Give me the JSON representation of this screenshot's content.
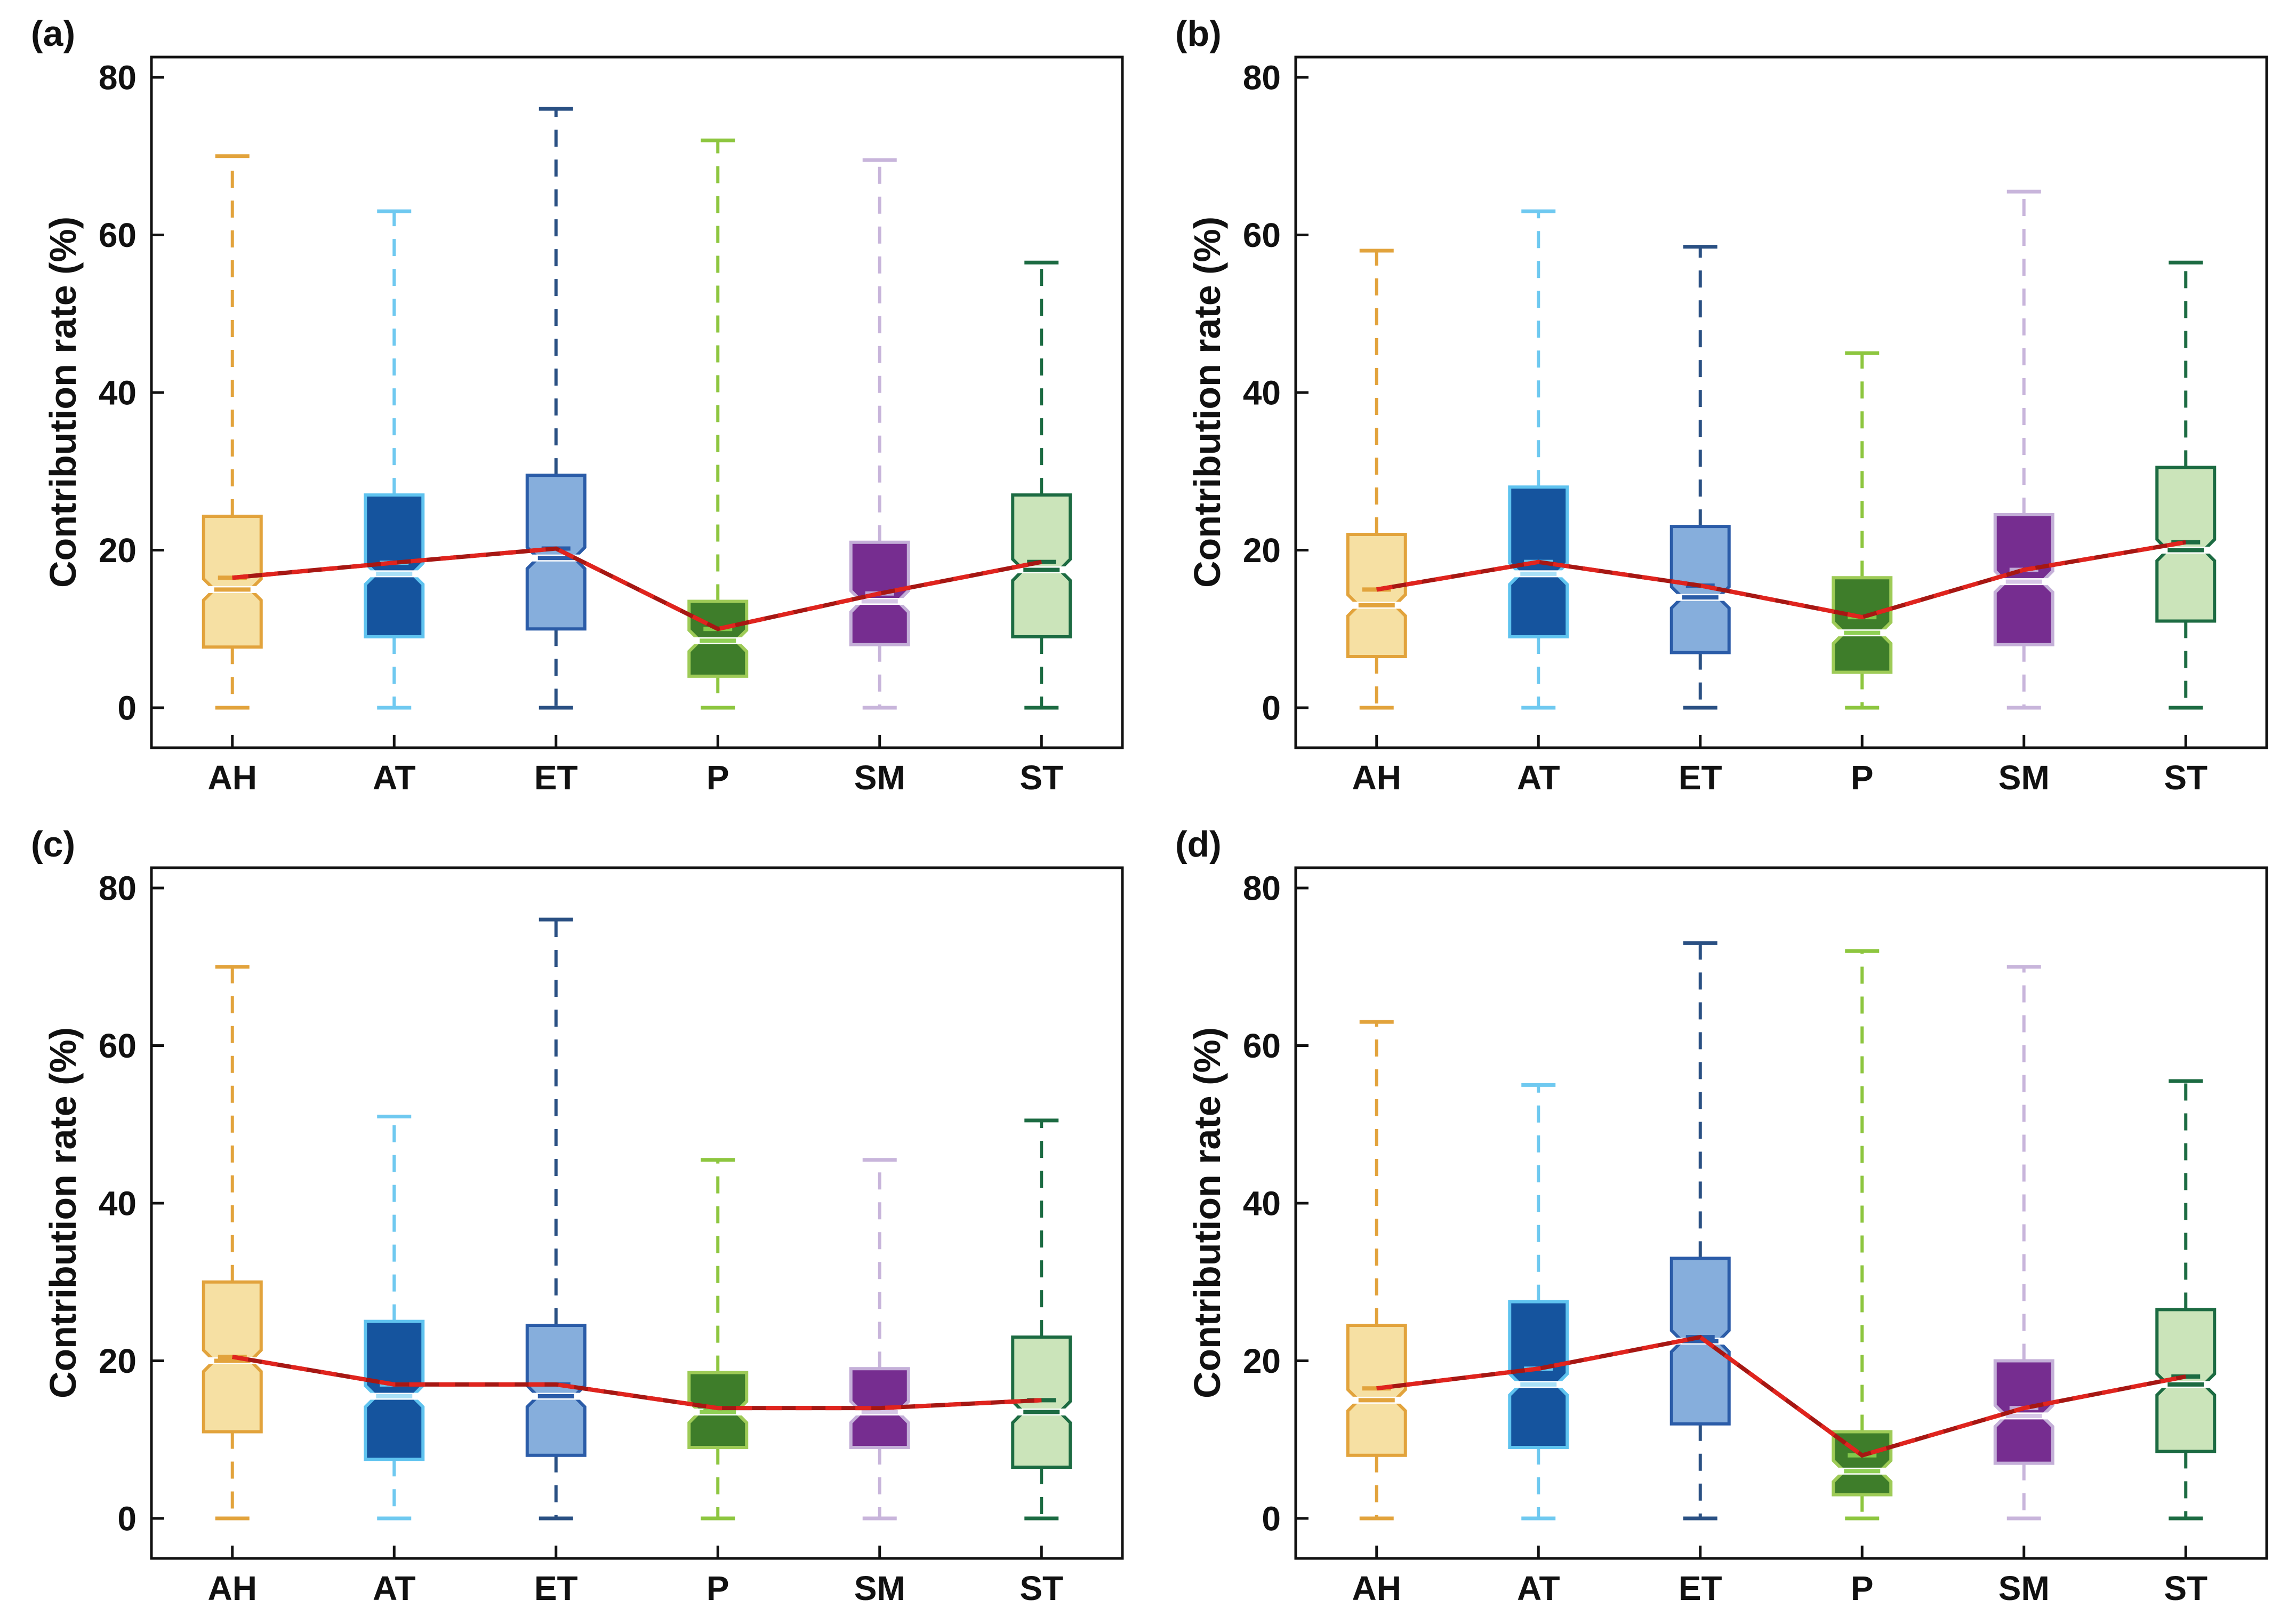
{
  "figure": {
    "background": "#FFFFFF"
  },
  "chart_data": {
    "type": "box",
    "title": "",
    "ylabel": "Contribution rate (%)",
    "xlabel": "",
    "yticks": [
      0,
      20,
      40,
      60,
      80
    ],
    "ylim": [
      -5,
      83
    ],
    "grid": false,
    "legend_position": "none",
    "categories": [
      "AH",
      "AT",
      "ET",
      "P",
      "SM",
      "ST"
    ],
    "notched_boxes": true,
    "mean_trend_line": {
      "description": "red line connecting category means",
      "base_color": "#A61713",
      "dash_color": "#E0241E"
    },
    "styles": {
      "AH": {
        "edge": "#E2A33C",
        "fill": "#F6E0A3",
        "whisker": "#E2A33C",
        "median": "#E2A33C",
        "mean": "#E2A33C"
      },
      "AT": {
        "edge": "#5FC3EF",
        "fill": "#15549E",
        "whisker": "#6FC9F0",
        "median": "#A8E0F7",
        "mean": "#66C7F0"
      },
      "ET": {
        "edge": "#2B5CA8",
        "fill": "#86AEDC",
        "whisker": "#2A5083",
        "median": "#2B5CA8",
        "mean": "#2B5CA8"
      },
      "P": {
        "edge": "#9ECB57",
        "fill": "#3E7D2A",
        "whisker": "#8DC63F",
        "median": "#8FD055",
        "mean": "#82C84B"
      },
      "SM": {
        "edge": "#C4AFD8",
        "fill": "#762D90",
        "whisker": "#C8B5DB",
        "median": "#D6C6E6",
        "mean": "#C0A9D6"
      },
      "ST": {
        "edge": "#1C6B42",
        "fill": "#CBE4BA",
        "whisker": "#1C6B42",
        "median": "#1C6B42",
        "mean": "#1C6B42"
      }
    },
    "panels": [
      {
        "label": "(a)",
        "boxes": [
          {
            "category": "AH",
            "whisker_low": 0,
            "q1": 7.7,
            "median": 15,
            "mean": 16.5,
            "q3": 24.3,
            "whisker_high": 70
          },
          {
            "category": "AT",
            "whisker_low": 0,
            "q1": 9,
            "median": 17,
            "mean": 18.4,
            "q3": 27,
            "whisker_high": 63
          },
          {
            "category": "ET",
            "whisker_low": 0,
            "q1": 10,
            "median": 19,
            "mean": 20.2,
            "q3": 29.5,
            "whisker_high": 76
          },
          {
            "category": "P",
            "whisker_low": 0,
            "q1": 4,
            "median": 8.5,
            "mean": 10,
            "q3": 13.5,
            "whisker_high": 72
          },
          {
            "category": "SM",
            "whisker_low": 0,
            "q1": 8,
            "median": 13.5,
            "mean": 14.5,
            "q3": 21,
            "whisker_high": 69.5
          },
          {
            "category": "ST",
            "whisker_low": 0,
            "q1": 9,
            "median": 17.5,
            "mean": 18.5,
            "q3": 27,
            "whisker_high": 56.5
          }
        ]
      },
      {
        "label": "(b)",
        "boxes": [
          {
            "category": "AH",
            "whisker_low": 0,
            "q1": 6.5,
            "median": 13,
            "mean": 15,
            "q3": 22,
            "whisker_high": 58
          },
          {
            "category": "AT",
            "whisker_low": 0,
            "q1": 9,
            "median": 17,
            "mean": 18.5,
            "q3": 28,
            "whisker_high": 63
          },
          {
            "category": "ET",
            "whisker_low": 0,
            "q1": 7,
            "median": 14,
            "mean": 15.5,
            "q3": 23,
            "whisker_high": 58.5
          },
          {
            "category": "P",
            "whisker_low": 0,
            "q1": 4.5,
            "median": 9.5,
            "mean": 11.5,
            "q3": 16.5,
            "whisker_high": 45
          },
          {
            "category": "SM",
            "whisker_low": 0,
            "q1": 8,
            "median": 16,
            "mean": 17.5,
            "q3": 24.5,
            "whisker_high": 65.5
          },
          {
            "category": "ST",
            "whisker_low": 0,
            "q1": 11,
            "median": 20,
            "mean": 21,
            "q3": 30.5,
            "whisker_high": 56.5
          }
        ]
      },
      {
        "label": "(c)",
        "boxes": [
          {
            "category": "AH",
            "whisker_low": 0,
            "q1": 11,
            "median": 20,
            "mean": 20.5,
            "q3": 30,
            "whisker_high": 70
          },
          {
            "category": "AT",
            "whisker_low": 0,
            "q1": 7.5,
            "median": 15.5,
            "mean": 17,
            "q3": 25,
            "whisker_high": 51
          },
          {
            "category": "ET",
            "whisker_low": 0,
            "q1": 8,
            "median": 15.5,
            "mean": 17,
            "q3": 24.5,
            "whisker_high": 76
          },
          {
            "category": "P",
            "whisker_low": 0,
            "q1": 9,
            "median": 13.5,
            "mean": 14,
            "q3": 18.5,
            "whisker_high": 45.5
          },
          {
            "category": "SM",
            "whisker_low": 0,
            "q1": 9,
            "median": 13.5,
            "mean": 14,
            "q3": 19,
            "whisker_high": 45.5
          },
          {
            "category": "ST",
            "whisker_low": 0,
            "q1": 6.5,
            "median": 13.5,
            "mean": 15,
            "q3": 23,
            "whisker_high": 50.5
          }
        ]
      },
      {
        "label": "(d)",
        "boxes": [
          {
            "category": "AH",
            "whisker_low": 0,
            "q1": 8,
            "median": 15,
            "mean": 16.5,
            "q3": 24.5,
            "whisker_high": 63
          },
          {
            "category": "AT",
            "whisker_low": 0,
            "q1": 9,
            "median": 17,
            "mean": 19,
            "q3": 27.5,
            "whisker_high": 55
          },
          {
            "category": "ET",
            "whisker_low": 0,
            "q1": 12,
            "median": 22.5,
            "mean": 23,
            "q3": 33,
            "whisker_high": 73
          },
          {
            "category": "P",
            "whisker_low": 0,
            "q1": 3,
            "median": 6,
            "mean": 8,
            "q3": 11,
            "whisker_high": 72
          },
          {
            "category": "SM",
            "whisker_low": 0,
            "q1": 7,
            "median": 13,
            "mean": 14,
            "q3": 20,
            "whisker_high": 70
          },
          {
            "category": "ST",
            "whisker_low": 0,
            "q1": 8.5,
            "median": 17,
            "mean": 18,
            "q3": 26.5,
            "whisker_high": 55.5
          }
        ]
      }
    ]
  }
}
